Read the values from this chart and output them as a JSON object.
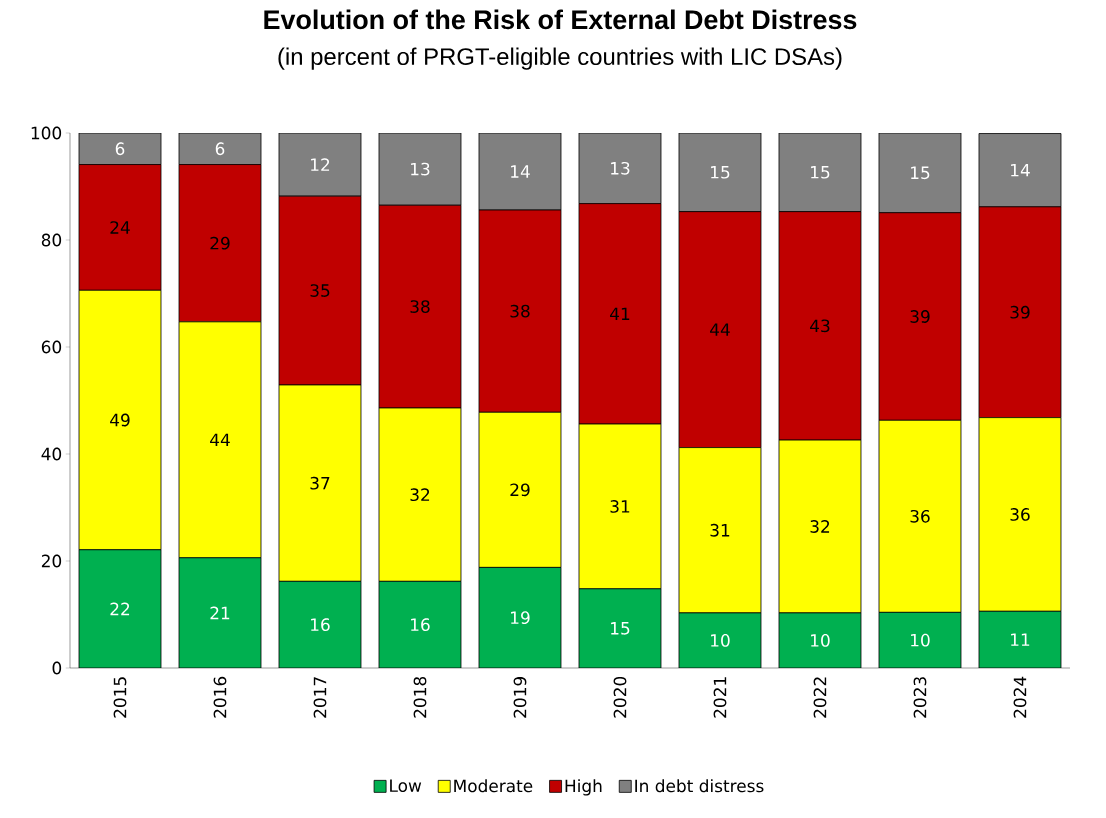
{
  "chart_data": {
    "type": "bar",
    "stacked": true,
    "title": "Evolution of the Risk of External Debt Distress",
    "subtitle": "(in percent of PRGT-eligible countries with LIC DSAs)",
    "categories": [
      "2015",
      "2016",
      "2017",
      "2018",
      "2019",
      "2020",
      "2021",
      "2022",
      "2023",
      "2024"
    ],
    "series": [
      {
        "name": "Low",
        "color": "#00b050",
        "values": [
          22.1,
          20.6,
          16.2,
          16.2,
          18.8,
          14.8,
          10.3,
          10.3,
          10.4,
          10.6
        ],
        "value_labels": [
          "22",
          "21",
          "16",
          "16",
          "19",
          "15",
          "10",
          "10",
          "10",
          "11"
        ]
      },
      {
        "name": "Moderate",
        "color": "#ffff00",
        "values": [
          48.5,
          44.1,
          36.7,
          32.4,
          29.0,
          30.8,
          30.9,
          32.3,
          35.9,
          36.2
        ],
        "value_labels": [
          "49",
          "44",
          "37",
          "32",
          "29",
          "31",
          "31",
          "32",
          "36",
          "36"
        ]
      },
      {
        "name": "High",
        "color": "#c00000",
        "values": [
          23.5,
          29.4,
          35.3,
          37.9,
          37.8,
          41.2,
          44.1,
          42.7,
          38.8,
          39.4
        ],
        "value_labels": [
          "24",
          "29",
          "35",
          "38",
          "38",
          "41",
          "44",
          "43",
          "39",
          "39"
        ]
      },
      {
        "name": "In debt distress",
        "color": "#808080",
        "values": [
          5.9,
          5.9,
          11.8,
          13.5,
          14.4,
          13.2,
          14.7,
          14.7,
          14.9,
          13.7
        ],
        "value_labels": [
          "6",
          "6",
          "12",
          "13",
          "14",
          "13",
          "15",
          "15",
          "15",
          "14"
        ]
      }
    ],
    "ylim": [
      0,
      100
    ],
    "yticks": [
      0,
      20,
      40,
      60,
      80,
      100
    ],
    "grid": false,
    "legend": "bottom"
  }
}
